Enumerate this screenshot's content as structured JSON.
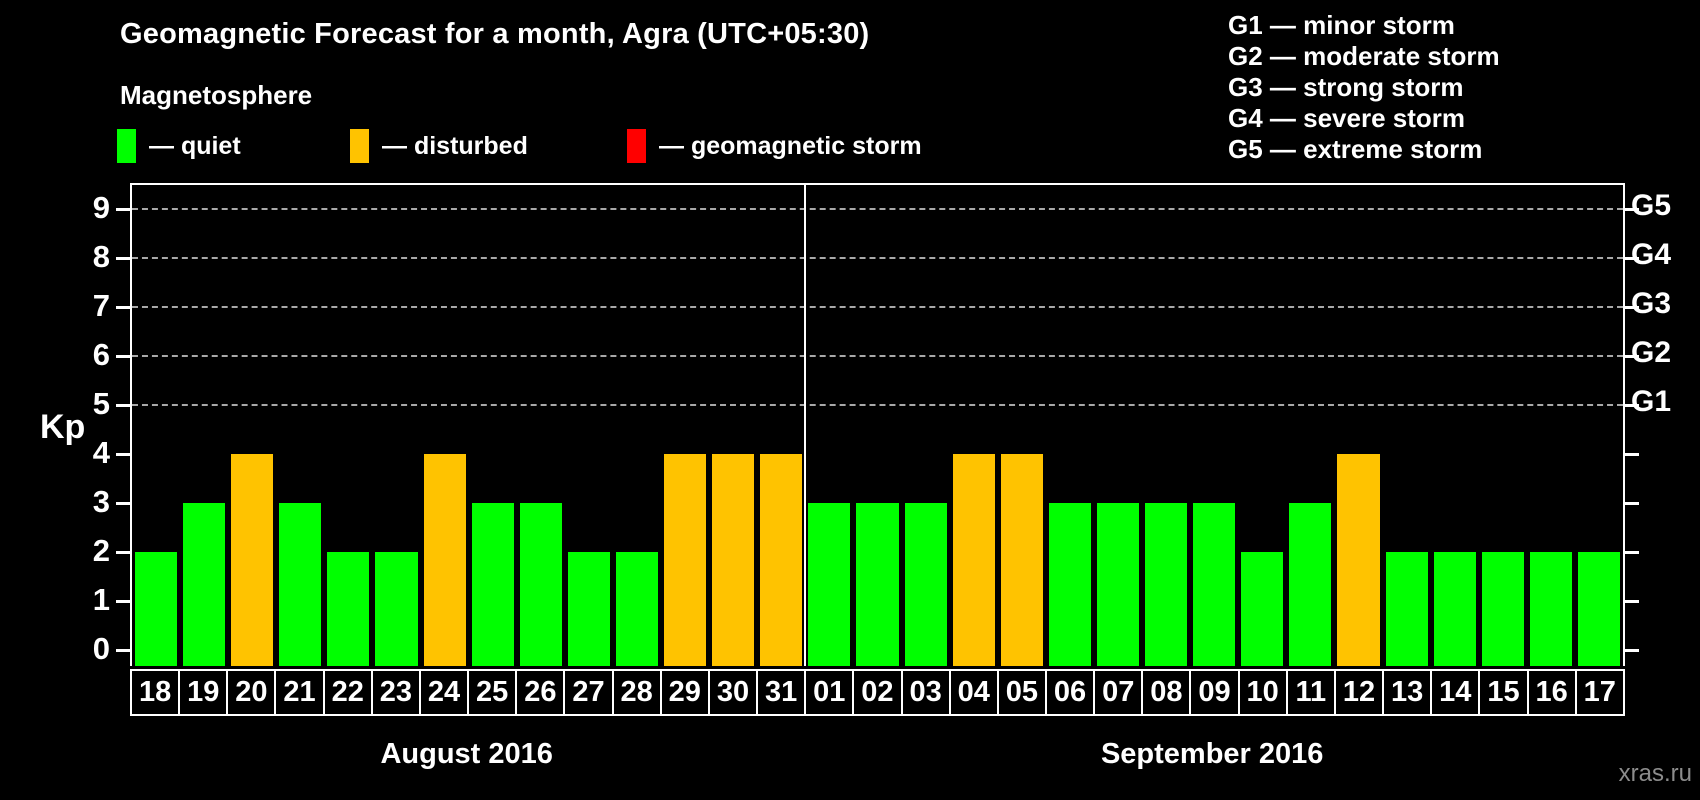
{
  "header": {
    "title": "Geomagnetic Forecast for a month, Agra (UTC+05:30)",
    "subtitle": "Magnetosphere",
    "legend": [
      {
        "name": "quiet",
        "label": "— quiet",
        "color": "#00ff00"
      },
      {
        "name": "disturbed",
        "label": "— disturbed",
        "color": "#ffc300"
      },
      {
        "name": "geomagnetic-storm",
        "label": "— geomagnetic storm",
        "color": "#ff0000"
      }
    ],
    "g_scale_legend": [
      "G1 — minor storm",
      "G2 — moderate storm",
      "G3 — strong storm",
      "G4 — severe storm",
      "G5 — extreme storm"
    ]
  },
  "chart_data": {
    "type": "bar",
    "title": "Geomagnetic Forecast for a month, Agra (UTC+05:30)",
    "ylabel": "Kp",
    "ylim": [
      0,
      9.3
    ],
    "yticks": [
      0,
      1,
      2,
      3,
      4,
      5,
      6,
      7,
      8,
      9
    ],
    "right_axis": {
      "ticks_kp": [
        5,
        6,
        7,
        8,
        9
      ],
      "labels": [
        "G1",
        "G2",
        "G3",
        "G4",
        "G5"
      ]
    },
    "grid": {
      "horizontal_dashed_at_kp": [
        5,
        6,
        7,
        8,
        9
      ],
      "color": "#a8a8a8",
      "style": "dashed"
    },
    "legend_position": "top-left",
    "colors": {
      "quiet": "#00ff00",
      "disturbed": "#ffc300",
      "storm": "#ff0000"
    },
    "months": [
      {
        "label": "August 2016",
        "days": [
          "18",
          "19",
          "20",
          "21",
          "22",
          "23",
          "24",
          "25",
          "26",
          "27",
          "28",
          "29",
          "30",
          "31"
        ],
        "kp": [
          2,
          3,
          4,
          3,
          2,
          2,
          4,
          3,
          3,
          2,
          2,
          4,
          4,
          4
        ],
        "state": [
          "quiet",
          "quiet",
          "disturbed",
          "quiet",
          "quiet",
          "quiet",
          "disturbed",
          "quiet",
          "quiet",
          "quiet",
          "quiet",
          "disturbed",
          "disturbed",
          "disturbed"
        ]
      },
      {
        "label": "September 2016",
        "days": [
          "01",
          "02",
          "03",
          "04",
          "05",
          "06",
          "07",
          "08",
          "09",
          "10",
          "11",
          "12",
          "13",
          "14",
          "15",
          "16",
          "17"
        ],
        "kp": [
          3,
          3,
          3,
          4,
          4,
          3,
          3,
          3,
          3,
          2,
          3,
          4,
          2,
          2,
          2,
          2,
          2
        ],
        "state": [
          "quiet",
          "quiet",
          "quiet",
          "disturbed",
          "disturbed",
          "quiet",
          "quiet",
          "quiet",
          "quiet",
          "quiet",
          "quiet",
          "disturbed",
          "quiet",
          "quiet",
          "quiet",
          "quiet",
          "quiet"
        ]
      }
    ]
  },
  "watermark": "xras.ru"
}
